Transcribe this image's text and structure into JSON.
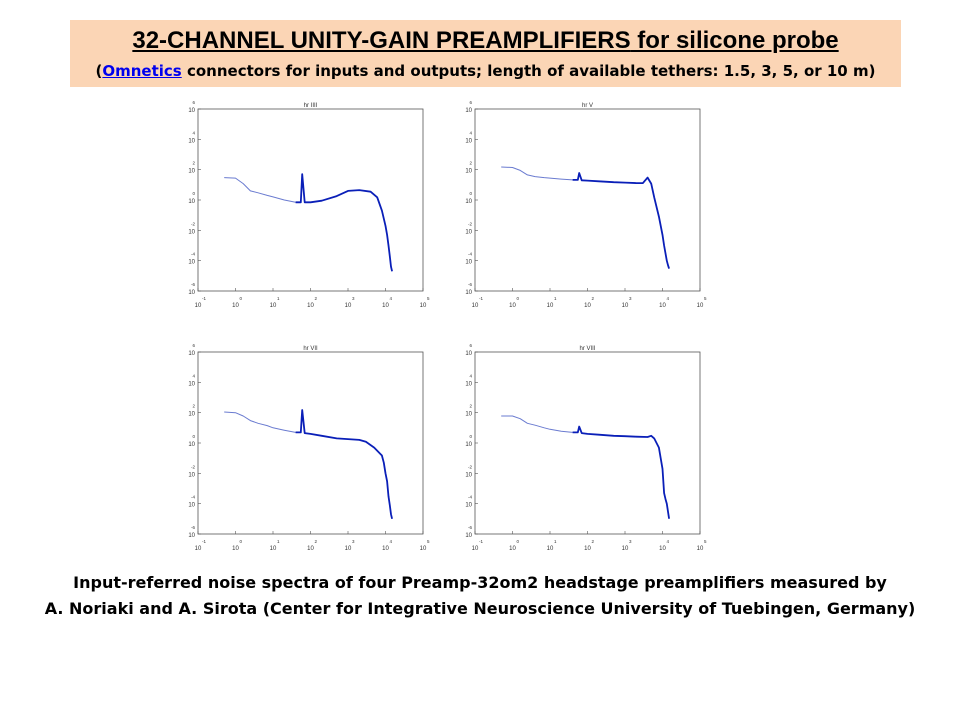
{
  "header": {
    "title_bold": "32-CHANNEL UNITY-GAIN  PREAMPLIFIERS",
    "title_rest": " for silicone probe",
    "subtitle_open": "(",
    "subtitle_link": "Omnetics",
    "subtitle_rest": " connectors for inputs and outputs;  length of available tethers: 1.5, 3, 5, or 10 m)"
  },
  "caption": {
    "line1": "Input-referred noise spectra of  four  Preamp-32om2 headstage preamplifiers measured by",
    "line2": "A. Noriaki and A. Sirota (Center for Integrative Neuroscience University of Tuebingen, Germany)"
  },
  "colors": {
    "title_background": "#fbd5b5",
    "link": "#0000ee",
    "trace_light": "#6a7bd0",
    "trace_dark": "#0a1fb8",
    "axes": "#555555"
  },
  "chart_data": [
    {
      "type": "line",
      "title": "hr IIII",
      "log_x": true,
      "log_y": true,
      "x_tick_exponents": [
        -1,
        0,
        1,
        2,
        3,
        4,
        5
      ],
      "y_tick_exponents": [
        -6,
        -4,
        -2,
        0,
        2,
        4,
        6
      ],
      "xlim": [
        0.1,
        100000
      ],
      "ylim": [
        1e-06,
        1000000
      ],
      "grid": false,
      "series": [
        {
          "x": [
            0.5,
            1,
            1.6,
            2.5,
            4,
            7,
            10,
            20,
            40,
            55,
            60,
            70,
            100,
            200,
            500,
            1000,
            2000,
            4000,
            6000,
            8000,
            10000,
            11000,
            12000,
            13000,
            14000,
            15000
          ],
          "y": [
            30,
            28,
            12,
            4,
            3,
            2,
            1.6,
            1,
            0.7,
            0.7,
            50,
            0.7,
            0.7,
            0.9,
            1.8,
            4,
            4.5,
            3.5,
            1.5,
            0.2,
            0.02,
            0.005,
            0.001,
            0.0002,
            4e-05,
            2e-05
          ]
        }
      ]
    },
    {
      "type": "line",
      "title": "hr V",
      "log_x": true,
      "log_y": true,
      "x_tick_exponents": [
        -1,
        0,
        1,
        2,
        3,
        4,
        5
      ],
      "y_tick_exponents": [
        -6,
        -4,
        -2,
        0,
        2,
        4,
        6
      ],
      "xlim": [
        0.1,
        100000
      ],
      "ylim": [
        1e-06,
        1000000
      ],
      "grid": false,
      "series": [
        {
          "x": [
            0.5,
            1,
            1.6,
            2.5,
            4,
            7,
            10,
            20,
            40,
            55,
            60,
            70,
            100,
            200,
            500,
            1000,
            2000,
            3000,
            4000,
            5000,
            6000,
            8000,
            10000,
            11000,
            12000,
            13000,
            14000,
            15000
          ],
          "y": [
            150,
            140,
            90,
            45,
            35,
            30,
            28,
            24,
            21,
            21,
            60,
            20,
            19,
            17,
            15,
            14,
            13,
            13,
            30,
            12,
            1.5,
            0.08,
            0.005,
            0.001,
            0.0003,
            0.0001,
            5e-05,
            3e-05
          ]
        }
      ]
    },
    {
      "type": "line",
      "title": "hr VII",
      "log_x": true,
      "log_y": true,
      "x_tick_exponents": [
        -1,
        0,
        1,
        2,
        3,
        4,
        5
      ],
      "y_tick_exponents": [
        -6,
        -4,
        -2,
        0,
        2,
        4,
        6
      ],
      "xlim": [
        0.1,
        100000
      ],
      "ylim": [
        1e-06,
        1000000
      ],
      "grid": false,
      "series": [
        {
          "x": [
            0.5,
            1,
            1.6,
            2.5,
            4,
            7,
            10,
            20,
            40,
            55,
            60,
            70,
            100,
            200,
            500,
            1000,
            2000,
            3000,
            5000,
            8000,
            9000,
            10000,
            11000,
            12000,
            13000,
            14000,
            15000
          ],
          "y": [
            110,
            100,
            60,
            30,
            20,
            14,
            10,
            7,
            5,
            5,
            150,
            4.5,
            4,
            3,
            2,
            1.8,
            1.6,
            1.2,
            0.5,
            0.15,
            0.05,
            0.01,
            0.003,
            0.0003,
            8e-05,
            2e-05,
            1e-05
          ]
        }
      ]
    },
    {
      "type": "line",
      "title": "hr VIII",
      "log_x": true,
      "log_y": true,
      "x_tick_exponents": [
        -1,
        0,
        1,
        2,
        3,
        4,
        5
      ],
      "y_tick_exponents": [
        -6,
        -4,
        -2,
        0,
        2,
        4,
        6
      ],
      "xlim": [
        0.1,
        100000
      ],
      "ylim": [
        1e-06,
        1000000
      ],
      "grid": false,
      "series": [
        {
          "x": [
            0.5,
            1,
            1.6,
            2.5,
            4,
            7,
            10,
            20,
            40,
            55,
            60,
            70,
            100,
            200,
            500,
            1000,
            2000,
            4000,
            5000,
            6000,
            8000,
            10000,
            11000,
            12000,
            13000,
            14000,
            15000
          ],
          "y": [
            60,
            60,
            40,
            20,
            15,
            10,
            8,
            6,
            5,
            5,
            12,
            4.5,
            4,
            3.5,
            3,
            2.8,
            2.6,
            2.5,
            3,
            2,
            0.5,
            0.02,
            0.0005,
            0.0002,
            0.0001,
            3e-05,
            1e-05
          ]
        }
      ]
    }
  ]
}
